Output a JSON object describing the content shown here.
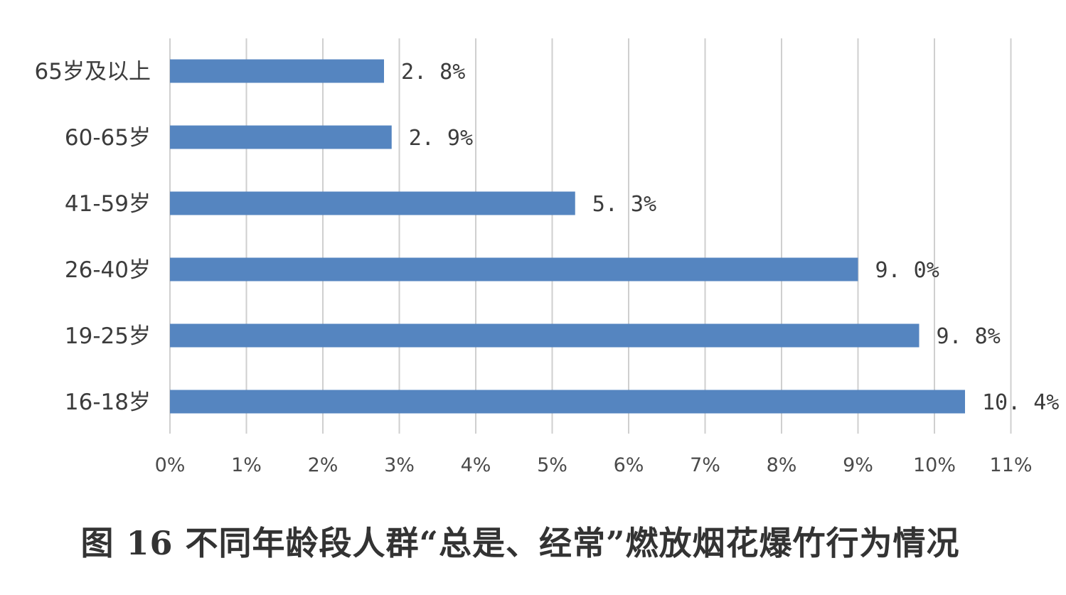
{
  "caption": "图 16 不同年龄段人群“总是、经常”燃放烟花爆竹行为情况",
  "chart_data": {
    "type": "bar",
    "orientation": "horizontal",
    "title": "图 16 不同年龄段人群“总是、经常”燃放烟花爆竹行为情况",
    "categories": [
      "65岁及以上",
      "60-65岁",
      "41-59岁",
      "26-40岁",
      "19-25岁",
      "16-18岁"
    ],
    "values": [
      2.8,
      2.9,
      5.3,
      9.0,
      9.8,
      10.4
    ],
    "data_labels": [
      "2. 8%",
      "2. 9%",
      "5. 3%",
      "9. 0%",
      "9. 8%",
      "10. 4%"
    ],
    "x_ticks": [
      "0%",
      "1%",
      "2%",
      "3%",
      "4%",
      "5%",
      "6%",
      "7%",
      "8%",
      "9%",
      "10%",
      "11%"
    ],
    "xlim": [
      0,
      11
    ],
    "xlabel": "",
    "ylabel": "",
    "grid": "vertical",
    "legend": "none",
    "bar_color": "#5585c0"
  }
}
